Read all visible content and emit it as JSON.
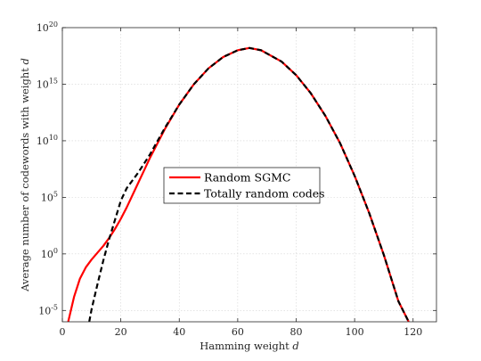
{
  "chart_data": {
    "type": "line",
    "title": "",
    "xlabel": "Hamming weight",
    "xlabel_var": "d",
    "ylabel": "Average number of codewords with weight",
    "ylabel_var": "d",
    "xlim": [
      0,
      128
    ],
    "ylim_log10": [
      -6,
      20
    ],
    "yscale": "log",
    "grid": true,
    "legend_position": "center",
    "x_ticks": [
      {
        "value": 0,
        "label": "0"
      },
      {
        "value": 20,
        "label": "20"
      },
      {
        "value": 40,
        "label": "40"
      },
      {
        "value": 60,
        "label": "60"
      },
      {
        "value": 80,
        "label": "80"
      },
      {
        "value": 100,
        "label": "100"
      },
      {
        "value": 120,
        "label": "120"
      }
    ],
    "y_ticks": [
      {
        "exp": -5,
        "base": "10",
        "sup": "-5"
      },
      {
        "exp": 0,
        "base": "10",
        "sup": "0"
      },
      {
        "exp": 5,
        "base": "10",
        "sup": "5"
      },
      {
        "exp": 10,
        "base": "10",
        "sup": "10"
      },
      {
        "exp": 15,
        "base": "10",
        "sup": "15"
      },
      {
        "exp": 20,
        "base": "10",
        "sup": "20"
      }
    ],
    "series": [
      {
        "name": "Random SGMC",
        "color": "#ff0000",
        "dash": "solid",
        "x": [
          2,
          4,
          6,
          8,
          10,
          12,
          14,
          16,
          18,
          20,
          22,
          24,
          26,
          28,
          30,
          35,
          40,
          45,
          50,
          55,
          60,
          64,
          68,
          75,
          80,
          85,
          90,
          95,
          100,
          105,
          110,
          115,
          118.5
        ],
        "log10_y": [
          -6,
          -3.8,
          -2.2,
          -1.2,
          -0.5,
          0.1,
          0.7,
          1.4,
          2.2,
          3.1,
          4.1,
          5.2,
          6.3,
          7.4,
          8.5,
          11.0,
          13.2,
          15.0,
          16.4,
          17.4,
          18.0,
          18.2,
          18.0,
          17.0,
          15.8,
          14.2,
          12.2,
          9.8,
          6.9,
          3.6,
          -0.1,
          -4.2,
          -6
        ]
      },
      {
        "name": "Totally random codes",
        "color": "#000000",
        "dash": "dashed",
        "x": [
          9.2,
          10,
          12,
          14,
          16,
          18,
          20,
          22,
          24,
          26,
          28,
          30,
          35,
          40,
          45,
          50,
          55,
          60,
          64,
          68,
          75,
          80,
          85,
          90,
          95,
          100,
          105,
          110,
          115,
          118.5
        ],
        "log10_y": [
          -6,
          -4.9,
          -2.7,
          -0.6,
          1.3,
          3.0,
          4.7,
          5.8,
          6.5,
          7.2,
          8.0,
          8.8,
          11.1,
          13.2,
          15.0,
          16.4,
          17.4,
          18.0,
          18.2,
          18.0,
          17.0,
          15.8,
          14.2,
          12.2,
          9.8,
          6.9,
          3.6,
          -0.1,
          -4.2,
          -6
        ]
      }
    ]
  }
}
